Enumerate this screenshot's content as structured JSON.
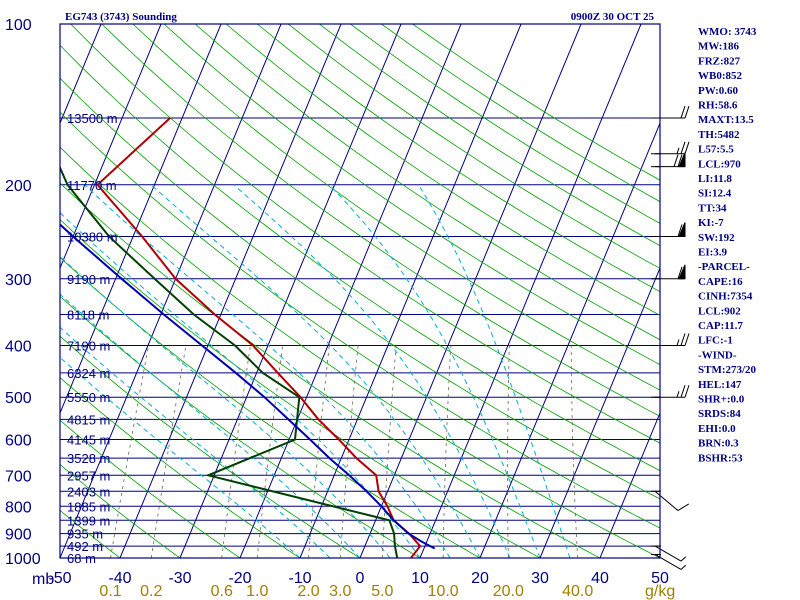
{
  "title": "EG743 (3743) Sounding",
  "valid_time": "0900Z 30 OCT 25",
  "colors": {
    "frame": "#000080",
    "temperature": "#b00000",
    "dewpoint": "#004000",
    "parcel": "#0000b0",
    "dry_adiabat": "#00a000",
    "moist_adiabat": "#00b0d0",
    "mixing_ratio": "#6a6a4a",
    "wind_barb": "#000000"
  },
  "chart_data": {
    "type": "skew-t",
    "pressure_range_mb": [
      1000,
      100
    ],
    "temperature_range_c": [
      -50,
      50
    ],
    "pressure_unit_label": "mb",
    "mixing_ratio_unit_label": "g/kg",
    "pressure_labels": [
      "100",
      "200",
      "300",
      "400",
      "500",
      "600",
      "700",
      "800",
      "900",
      "1000"
    ],
    "pressure_label_values": [
      100,
      200,
      300,
      400,
      500,
      600,
      700,
      800,
      900,
      1000
    ],
    "height_levels": [
      {
        "label": "13500 m",
        "p": 150
      },
      {
        "label": "11770 m",
        "p": 200
      },
      {
        "label": "10380 m",
        "p": 250
      },
      {
        "label": "9190 m",
        "p": 300
      },
      {
        "label": "8118 m",
        "p": 350
      },
      {
        "label": "7190 m",
        "p": 400
      },
      {
        "label": "6324 m",
        "p": 450
      },
      {
        "label": "5550 m",
        "p": 500
      },
      {
        "label": "4815 m",
        "p": 550
      },
      {
        "label": "4145 m",
        "p": 600
      },
      {
        "label": "3528 m",
        "p": 650
      },
      {
        "label": "2957 m",
        "p": 700
      },
      {
        "label": "2403 m",
        "p": 750
      },
      {
        "label": "1885 m",
        "p": 800
      },
      {
        "label": "1399 m",
        "p": 850
      },
      {
        "label": "935 m",
        "p": 900
      },
      {
        "label": "492 m",
        "p": 950
      },
      {
        "label": "68 m",
        "p": 1000
      }
    ],
    "temperature_ticks": [
      "-50",
      "-40",
      "-30",
      "-20",
      "-10",
      "0",
      "10",
      "20",
      "30",
      "40",
      "50"
    ],
    "temperature_tick_values": [
      -50,
      -40,
      -30,
      -20,
      -10,
      0,
      10,
      20,
      30,
      40,
      50
    ],
    "mixing_ratio_labels": [
      "0.1",
      "0.2",
      "0.6",
      "1.0",
      "2.0",
      "3.0",
      "5.0",
      "10.0",
      "20.0",
      "40.0"
    ],
    "mixing_ratio_values": [
      0.1,
      0.2,
      0.6,
      1.0,
      2.0,
      3.0,
      5.0,
      10.0,
      20.0,
      40.0
    ],
    "series": [
      {
        "name": "temperature",
        "points": [
          {
            "p": 1000,
            "t": 8.5
          },
          {
            "p": 950,
            "t": 9.2
          },
          {
            "p": 900,
            "t": 6.5
          },
          {
            "p": 850,
            "t": 3.0
          },
          {
            "p": 800,
            "t": 1.0
          },
          {
            "p": 750,
            "t": -1.5
          },
          {
            "p": 700,
            "t": -3.0
          },
          {
            "p": 650,
            "t": -7.5
          },
          {
            "p": 600,
            "t": -11.7
          },
          {
            "p": 550,
            "t": -16.5
          },
          {
            "p": 500,
            "t": -21.0
          },
          {
            "p": 450,
            "t": -26.5
          },
          {
            "p": 400,
            "t": -32.5
          },
          {
            "p": 350,
            "t": -41.0
          },
          {
            "p": 300,
            "t": -50.0
          },
          {
            "p": 250,
            "t": -58.5
          },
          {
            "p": 200,
            "t": -69.5
          },
          {
            "p": 150,
            "t": -62.0
          }
        ]
      },
      {
        "name": "dewpoint",
        "points": [
          {
            "p": 1000,
            "t": 6.2
          },
          {
            "p": 950,
            "t": 5.0
          },
          {
            "p": 900,
            "t": 4.0
          },
          {
            "p": 850,
            "t": 2.3
          },
          {
            "p": 700,
            "t": -31.0
          },
          {
            "p": 600,
            "t": -19.0
          },
          {
            "p": 500,
            "t": -21.2
          },
          {
            "p": 450,
            "t": -29.0
          },
          {
            "p": 400,
            "t": -35.5
          },
          {
            "p": 350,
            "t": -44.5
          },
          {
            "p": 300,
            "t": -53.5
          },
          {
            "p": 250,
            "t": -64.0
          },
          {
            "p": 200,
            "t": -74.5
          },
          {
            "p": 150,
            "t": -84.0
          }
        ]
      },
      {
        "name": "parcel",
        "points": [
          {
            "p": 960,
            "t": 11.8
          },
          {
            "p": 930,
            "t": 9.0
          },
          {
            "p": 900,
            "t": 6.4
          },
          {
            "p": 850,
            "t": 3.0
          },
          {
            "p": 800,
            "t": 0.0
          },
          {
            "p": 750,
            "t": -3.5
          },
          {
            "p": 700,
            "t": -7.5
          },
          {
            "p": 650,
            "t": -12.0
          },
          {
            "p": 600,
            "t": -16.5
          },
          {
            "p": 550,
            "t": -21.5
          },
          {
            "p": 500,
            "t": -27.0
          },
          {
            "p": 450,
            "t": -33.5
          },
          {
            "p": 400,
            "t": -41.0
          },
          {
            "p": 350,
            "t": -49.5
          },
          {
            "p": 300,
            "t": -59.0
          },
          {
            "p": 250,
            "t": -70.0
          },
          {
            "p": 200,
            "t": -83.0
          },
          {
            "p": 150,
            "t": -99.0
          },
          {
            "p": 125,
            "t": -109.0
          }
        ]
      }
    ],
    "wind_barbs": [
      {
        "p": 150,
        "spd": 20,
        "dir": 270
      },
      {
        "p": 175,
        "spd": 25,
        "dir": 270
      },
      {
        "p": 185,
        "spd": 70,
        "dir": 270
      },
      {
        "p": 250,
        "spd": 60,
        "dir": 270
      },
      {
        "p": 300,
        "spd": 60,
        "dir": 270
      },
      {
        "p": 400,
        "spd": 25,
        "dir": 270
      },
      {
        "p": 500,
        "spd": 25,
        "dir": 270
      },
      {
        "p": 750,
        "spd": 10,
        "dir": 310
      },
      {
        "p": 950,
        "spd": 5,
        "dir": 300
      },
      {
        "p": 985,
        "spd": 5,
        "dir": 300
      }
    ]
  },
  "indices": [
    "WMO: 3743",
    "MW:186",
    "FRZ:827",
    "WB0:852",
    "PW:0.60",
    "RH:58.6",
    "MAXT:13.5",
    "TH:5482",
    "L57:5.5",
    "LCL:970",
    "LI:11.8",
    "SI:12.4",
    "TT:34",
    "KI:-7",
    "SW:192",
    "EI:3.9",
    "-PARCEL-",
    "CAPE:16",
    "CINH:7354",
    "LCL:902",
    "CAP:11.7",
    "LFC:-1",
    "-WIND-",
    "STM:273/20",
    "HEL:147",
    "SHR+:0.0",
    "SRDS:84",
    "EHI:0.0",
    "BRN:0.3",
    "BSHR:53"
  ]
}
